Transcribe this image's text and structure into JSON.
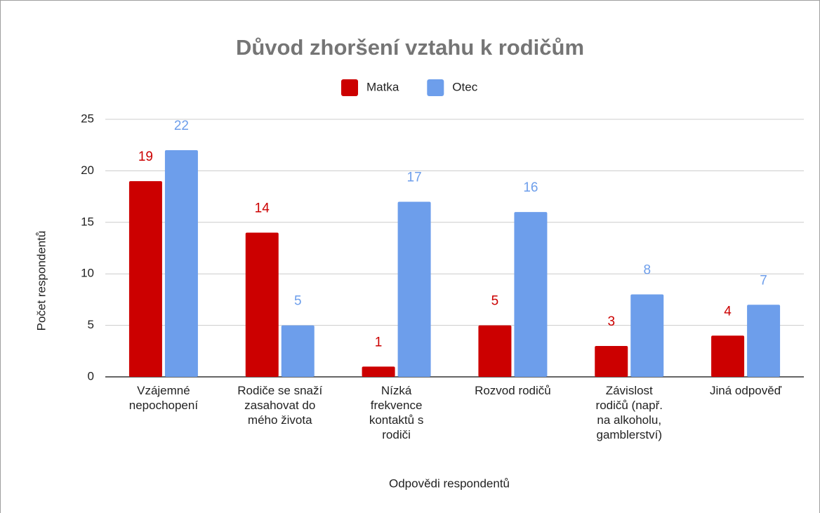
{
  "chart_data": {
    "type": "bar",
    "title": "Důvod zhoršení vztahu k rodičům",
    "x_label": "Odpovědi respondentů",
    "y_label": "Počet respondentů",
    "categories": [
      "Vzájemné\nnepochopení",
      "Rodiče se snaží\nzasahovat do\nmého života",
      "Nízká\nfrekvence\nkontaktů s\nrodiči",
      "Rozvod rodičů",
      "Závislost\nrodičů (např.\nna alkoholu,\ngamblerství)",
      "Jiná odpověď"
    ],
    "series": [
      {
        "name": "Matka",
        "color": "#cc0000",
        "values": [
          19,
          14,
          1,
          5,
          3,
          4
        ]
      },
      {
        "name": "Otec",
        "color": "#6d9eeb",
        "values": [
          22,
          5,
          17,
          16,
          8,
          7
        ]
      }
    ],
    "ylim": [
      0,
      25
    ],
    "yticks": [
      0,
      5,
      10,
      15,
      20,
      25
    ],
    "grid": true,
    "legend": "top"
  }
}
